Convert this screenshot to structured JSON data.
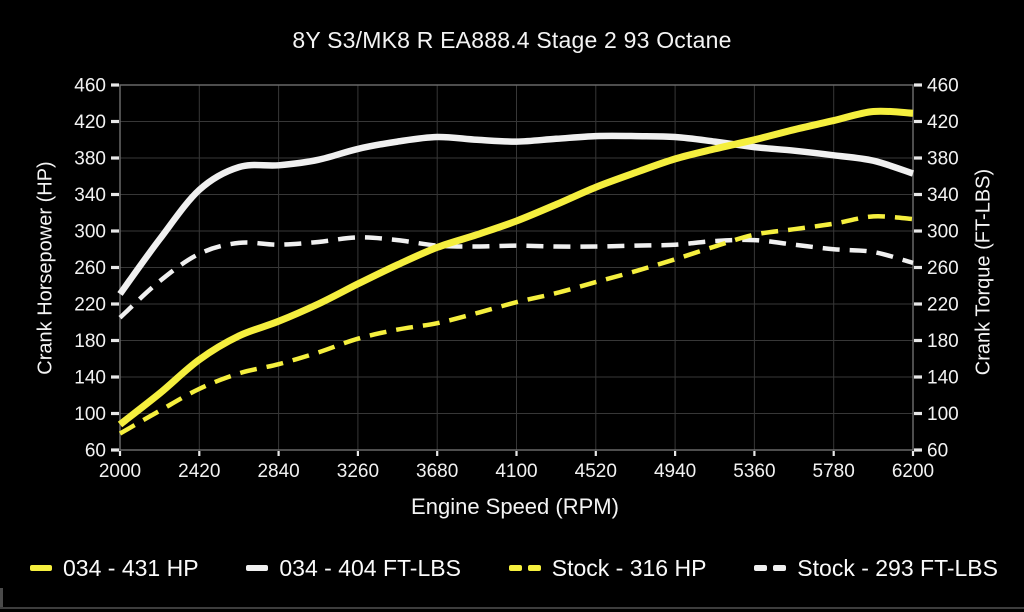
{
  "title": "8Y S3/MK8 R EA888.4 Stage 2 93 Octane",
  "axes": {
    "x_label": "Engine Speed (RPM)",
    "y_left_label": "Crank Horsepower (HP)",
    "y_right_label": "Crank Torque (FT-LBS)"
  },
  "colors": {
    "background": "#000000",
    "grid": "#373737",
    "border": "#6f6f6f",
    "tick": "#e8e8e8",
    "text": "#f4f4f4",
    "yellow": "#f5ef3e",
    "white": "#f0f0f0"
  },
  "legend": [
    {
      "label": "034 - 431 HP",
      "color": "#f5ef3e",
      "style": "solid"
    },
    {
      "label": "034 - 404 FT-LBS",
      "color": "#f0f0f0",
      "style": "solid"
    },
    {
      "label": "Stock - 316 HP",
      "color": "#f5ef3e",
      "style": "dashed"
    },
    {
      "label": "Stock - 293 FT-LBS",
      "color": "#f0f0f0",
      "style": "dashed"
    }
  ],
  "chart_data": {
    "type": "line",
    "title": "8Y S3/MK8 R EA888.4 Stage 2 93 Octane",
    "xlabel": "Engine Speed (RPM)",
    "ylabel_left": "Crank Horsepower (HP)",
    "ylabel_right": "Crank Torque (FT-LBS)",
    "xlim": [
      2000,
      6200
    ],
    "ylim": [
      60,
      460
    ],
    "x_ticks": [
      2000,
      2420,
      2840,
      3260,
      3680,
      4100,
      4520,
      4940,
      5360,
      5780,
      6200
    ],
    "y_ticks": [
      60,
      100,
      140,
      180,
      220,
      260,
      300,
      340,
      380,
      420,
      460
    ],
    "grid": true,
    "legend_position": "bottom",
    "x": [
      2000,
      2210,
      2420,
      2630,
      2840,
      3050,
      3260,
      3470,
      3680,
      3890,
      4100,
      4310,
      4520,
      4730,
      4940,
      5150,
      5360,
      5570,
      5780,
      5990,
      6200
    ],
    "series": [
      {
        "id": "034-hp",
        "name": "034 - 431 HP",
        "unit": "HP",
        "peak": 431,
        "color": "#f5ef3e",
        "style": "solid",
        "width": 7,
        "values": [
          88,
          122,
          159,
          185,
          201,
          220,
          242,
          263,
          282,
          296,
          311,
          329,
          348,
          364,
          379,
          390,
          400,
          411,
          421,
          431,
          429
        ]
      },
      {
        "id": "034-tq",
        "name": "034 - 404 FT-LBS",
        "unit": "FT-LBS",
        "peak": 404,
        "color": "#f0f0f0",
        "style": "solid",
        "width": 6.5,
        "values": [
          231,
          291,
          345,
          370,
          372,
          378,
          390,
          398,
          403,
          400,
          398,
          401,
          404,
          404,
          403,
          398,
          392,
          388,
          383,
          377,
          363
        ]
      },
      {
        "id": "stock-hp",
        "name": "Stock - 316 HP",
        "unit": "HP",
        "peak": 316,
        "color": "#f5ef3e",
        "style": "dashed",
        "width": 4.5,
        "values": [
          78,
          103,
          127,
          144,
          154,
          167,
          182,
          192,
          199,
          210,
          222,
          232,
          244,
          256,
          269,
          283,
          296,
          302,
          308,
          316,
          313
        ]
      },
      {
        "id": "stock-tq",
        "name": "Stock - 293 FT-LBS",
        "unit": "FT-LBS",
        "peak": 293,
        "color": "#f0f0f0",
        "style": "dashed",
        "width": 4.5,
        "values": [
          205,
          245,
          275,
          287,
          285,
          288,
          293,
          290,
          284,
          283,
          284,
          283,
          283,
          284,
          285,
          289,
          290,
          285,
          280,
          277,
          265
        ]
      }
    ]
  }
}
